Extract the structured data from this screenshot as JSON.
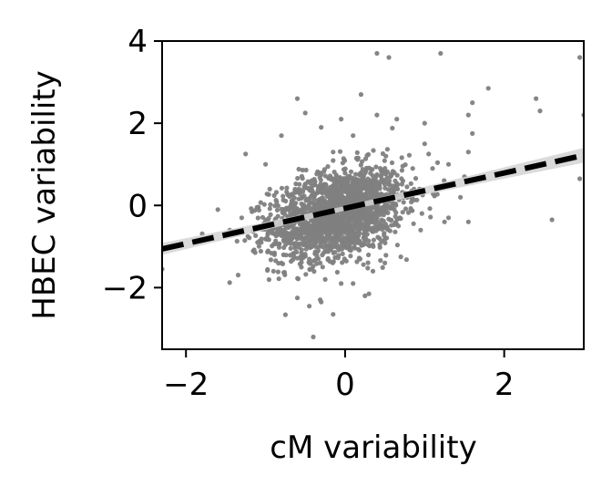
{
  "chart_data": {
    "type": "scatter",
    "xlabel": "cM variability",
    "ylabel": "HBEC variability",
    "xlim": [
      -2.3,
      3.0
    ],
    "ylim": [
      -3.5,
      4.0
    ],
    "xticks": [
      -2,
      0,
      2
    ],
    "yticks": [
      -2,
      0,
      2,
      4
    ],
    "xtick_labels": [
      "−2",
      "0",
      "2"
    ],
    "ytick_labels": [
      "−2",
      "0",
      "2",
      "4"
    ],
    "grid": false,
    "point_color": "#7f7f7f",
    "fit_line": {
      "slope": 0.43,
      "intercept": -0.07,
      "color": "#000000",
      "style": "dashed"
    },
    "confidence_band_color": "#d3d3d3",
    "cluster": {
      "count": 1900,
      "x_mean": -0.1,
      "x_sd": 0.42,
      "y_mean": -0.2,
      "y_sd": 0.55,
      "correlation": 0.33
    },
    "outliers": [
      [
        0.4,
        3.7
      ],
      [
        0.55,
        3.6
      ],
      [
        1.2,
        3.7
      ],
      [
        2.95,
        3.6
      ],
      [
        3.0,
        2.2
      ],
      [
        1.8,
        2.85
      ],
      [
        2.4,
        2.6
      ],
      [
        2.45,
        2.3
      ],
      [
        1.6,
        2.5
      ],
      [
        1.55,
        2.2
      ],
      [
        1.6,
        1.75
      ],
      [
        1.55,
        1.3
      ],
      [
        1.5,
        0.7
      ],
      [
        2.95,
        0.65
      ],
      [
        1.55,
        -0.4
      ],
      [
        2.6,
        -0.35
      ],
      [
        0.2,
        2.7
      ],
      [
        0.65,
        2.1
      ],
      [
        1.0,
        2.0
      ],
      [
        1.0,
        1.5
      ],
      [
        1.1,
        0.9
      ],
      [
        1.05,
        1.25
      ],
      [
        1.3,
        1.0
      ],
      [
        1.45,
        0.2
      ],
      [
        1.3,
        -0.3
      ],
      [
        -0.6,
        2.6
      ],
      [
        -0.5,
        2.25
      ],
      [
        -0.3,
        1.9
      ],
      [
        -0.8,
        1.7
      ],
      [
        -1.25,
        1.25
      ],
      [
        -1.0,
        1.0
      ],
      [
        -1.6,
        -0.1
      ],
      [
        -1.45,
        -0.6
      ],
      [
        -2.3,
        -1.55
      ],
      [
        -1.3,
        -0.3
      ],
      [
        -0.8,
        -1.4
      ],
      [
        -0.55,
        -1.5
      ],
      [
        -0.25,
        -1.8
      ],
      [
        -0.3,
        -2.35
      ],
      [
        -0.45,
        -2.45
      ],
      [
        -0.6,
        -2.25
      ],
      [
        -0.4,
        -3.2
      ],
      [
        -0.15,
        -2.65
      ],
      [
        0.1,
        -1.9
      ],
      [
        0.25,
        -2.2
      ],
      [
        0.3,
        -2.15
      ],
      [
        0.35,
        -1.6
      ],
      [
        -0.05,
        -1.9
      ],
      [
        0.5,
        -1.4
      ],
      [
        0.7,
        -1.25
      ],
      [
        0.85,
        0.9
      ],
      [
        0.75,
        0.3
      ],
      [
        -0.05,
        2.1
      ],
      [
        0.4,
        2.2
      ],
      [
        0.1,
        1.7
      ],
      [
        -0.9,
        -1.6
      ],
      [
        -1.1,
        -0.9
      ],
      [
        1.25,
        -0.4
      ],
      [
        -0.15,
        1.3
      ],
      [
        0.95,
        -0.6
      ]
    ]
  }
}
